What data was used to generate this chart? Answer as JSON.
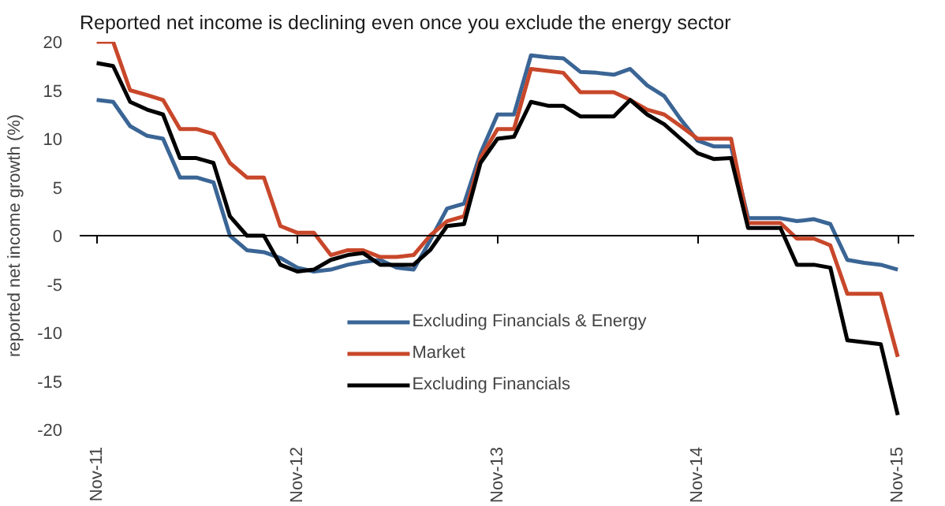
{
  "chart_data": {
    "type": "line",
    "title": "Reported net income is declining even once you exclude the energy sector",
    "ylabel": "reported net income growth (%)",
    "x": [
      "2011-11",
      "2011-12",
      "2012-01",
      "2012-02",
      "2012-03",
      "2012-04",
      "2012-05",
      "2012-06",
      "2012-07",
      "2012-08",
      "2012-09",
      "2012-10",
      "2012-11",
      "2012-12",
      "2013-01",
      "2013-02",
      "2013-03",
      "2013-04",
      "2013-05",
      "2013-06",
      "2013-07",
      "2013-08",
      "2013-09",
      "2013-10",
      "2013-11",
      "2013-12",
      "2014-01",
      "2014-02",
      "2014-03",
      "2014-04",
      "2014-05",
      "2014-06",
      "2014-07",
      "2014-08",
      "2014-09",
      "2014-10",
      "2014-11",
      "2014-12",
      "2015-01",
      "2015-02",
      "2015-03",
      "2015-04",
      "2015-05",
      "2015-06",
      "2015-07",
      "2015-08",
      "2015-09",
      "2015-10",
      "2015-11"
    ],
    "xlim": [
      "2011-10",
      "2015-12"
    ],
    "xticks": [
      {
        "value": "2011-11",
        "label": "Nov-11"
      },
      {
        "value": "2012-11",
        "label": "Nov-12"
      },
      {
        "value": "2013-11",
        "label": "Nov-13"
      },
      {
        "value": "2014-11",
        "label": "Nov-14"
      },
      {
        "value": "2015-11",
        "label": "Nov-15"
      }
    ],
    "ylim": [
      -20,
      20
    ],
    "yticks": [
      -20,
      -15,
      -10,
      -5,
      0,
      5,
      10,
      15,
      20
    ],
    "series": [
      {
        "name": "Excluding Financials & Energy",
        "color": "#3a6595",
        "values": [
          14,
          13.8,
          11.3,
          10.3,
          10,
          6,
          6,
          5.5,
          0,
          -1.5,
          -1.7,
          -2.3,
          -3.3,
          -3.7,
          -3.5,
          -3,
          -2.7,
          -2.5,
          -3.3,
          -3.5,
          -0.5,
          2.8,
          3.3,
          8.5,
          12.5,
          12.5,
          18.6,
          18.4,
          18.3,
          16.9,
          16.8,
          16.6,
          17.2,
          15.5,
          14.4,
          12,
          9.8,
          9.2,
          9.2,
          1.8,
          1.8,
          1.8,
          1.5,
          1.7,
          1.2,
          -2.5,
          -2.8,
          -3,
          -3.5
        ]
      },
      {
        "name": "Market",
        "color": "#c8472a",
        "values": [
          20,
          20,
          15,
          14.5,
          14,
          11,
          11,
          10.5,
          7.5,
          6,
          6,
          1,
          0.3,
          0.3,
          -2,
          -1.5,
          -1.5,
          -2.2,
          -2.2,
          -2,
          0,
          1.5,
          2,
          8,
          11,
          11,
          17.2,
          17,
          16.8,
          14.8,
          14.8,
          14.8,
          14,
          13,
          12.5,
          11.3,
          10,
          10,
          10,
          1.3,
          1.3,
          1.3,
          -0.3,
          -0.3,
          -1,
          -6,
          -6,
          -6,
          -12.5
        ]
      },
      {
        "name": "Excluding Financials",
        "color": "#000000",
        "values": [
          17.8,
          17.5,
          13.8,
          13,
          12.5,
          8,
          8,
          7.5,
          2,
          0,
          0,
          -3,
          -3.7,
          -3.5,
          -2.5,
          -2,
          -1.8,
          -3,
          -3,
          -3,
          -1.5,
          1,
          1.2,
          7.5,
          10,
          10.2,
          13.8,
          13.4,
          13.4,
          12.3,
          12.3,
          12.3,
          14,
          12.5,
          11.5,
          10,
          8.5,
          7.9,
          8,
          0.8,
          0.8,
          0.8,
          -3,
          -3,
          -3.3,
          -10.8,
          -11,
          -11.2,
          -18.5
        ]
      }
    ],
    "ref_lines": [
      {
        "axis": "y",
        "value": 0,
        "color": "#000000",
        "line_style": "solid"
      }
    ],
    "legend": "bottom",
    "grid": false,
    "marker": "none",
    "line_style": "solid"
  }
}
